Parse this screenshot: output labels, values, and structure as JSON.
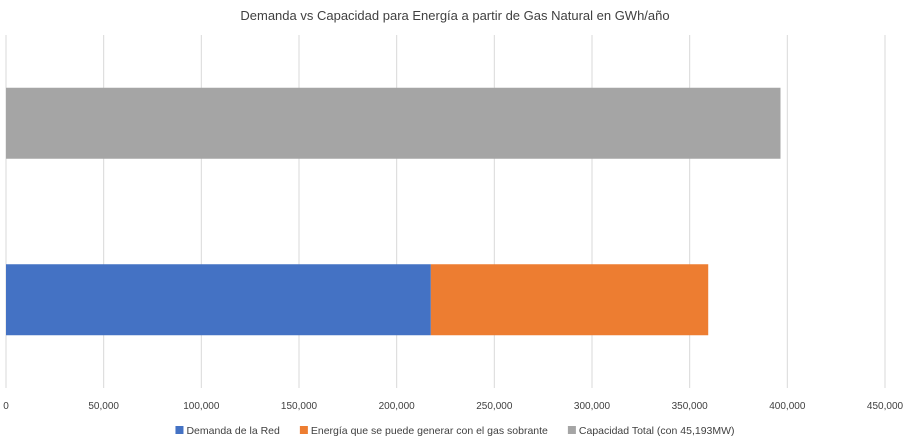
{
  "chart_data": {
    "type": "bar",
    "orientation": "horizontal",
    "stacked": true,
    "title": "Demanda vs Capacidad para Energía a partir de Gas Natural en GWh/año",
    "xlabel": "",
    "ylabel": "",
    "xlim": [
      0,
      450000
    ],
    "x_ticks": [
      "0",
      "50,000",
      "100,000",
      "150,000",
      "200,000",
      "250,000",
      "300,000",
      "350,000",
      "400,000",
      "450,000"
    ],
    "categories": [
      "",
      ""
    ],
    "grid": "vertical",
    "legend_position": "bottom",
    "series": [
      {
        "name": "Demanda de la Red",
        "color": "#4472C4",
        "values": [
          217500,
          0
        ]
      },
      {
        "name": "Energía que se puede generar con el gas sobrante",
        "color": "#ED7D31",
        "values": [
          142000,
          0
        ]
      },
      {
        "name": "Capacidad Total (con 45,193MW)",
        "color": "#A5A5A5",
        "values": [
          0,
          396500
        ]
      }
    ]
  }
}
